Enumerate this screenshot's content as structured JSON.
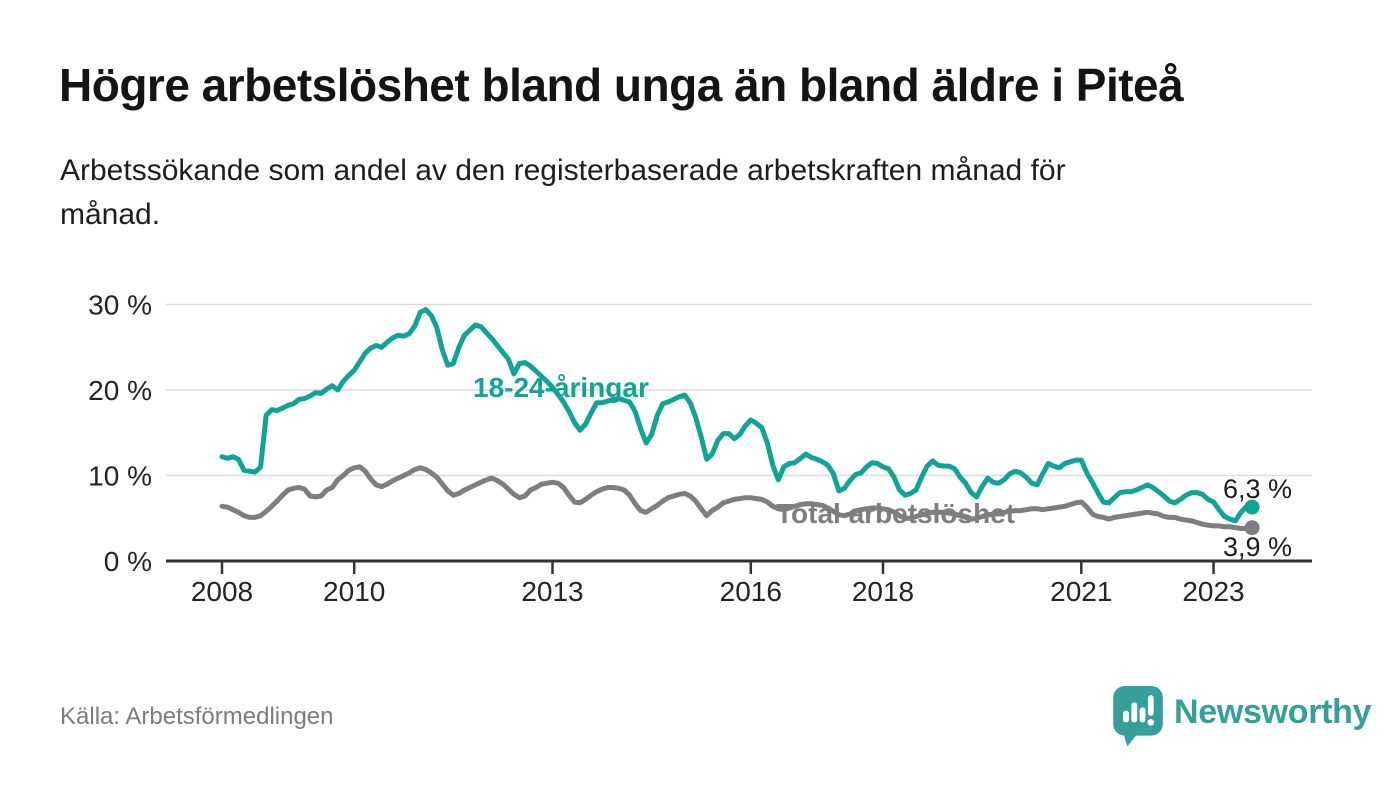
{
  "header": {
    "title": "Högre arbetslöshet bland unga än bland äldre i Piteå",
    "subtitle_line1": "Arbetssökande som andel av den registerbaserade arbetskraften månad för",
    "subtitle_line2": "månad."
  },
  "footer": {
    "source": "Källa: Arbetsförmedlingen",
    "brand": "Newsworthy"
  },
  "colors": {
    "youth_line": "#10A496",
    "total_line": "#7D7D82",
    "axis": "#333333",
    "grid": "#DCDCDC",
    "text": "#1D1D1D",
    "muted_text": "#7B7B81",
    "brand_teal": "#35A099"
  },
  "chart_data": {
    "type": "line",
    "title": "Högre arbetslöshet bland unga än bland äldre i Piteå",
    "subtitle": "Arbetssökande som andel av den registerbaserade arbetskraften månad för månad.",
    "x_unit": "monthly",
    "x_start": "2008-01",
    "x_end": "2023-08",
    "ylim": [
      0,
      31.5
    ],
    "grid": "horizontal",
    "legend_position": "inline-labels",
    "y_axis_ticks": [
      {
        "value": 0,
        "label": "0 %"
      },
      {
        "value": 10,
        "label": "10 %"
      },
      {
        "value": 20,
        "label": "20 %"
      },
      {
        "value": 30,
        "label": "30 %"
      }
    ],
    "x_axis_ticks": [
      {
        "value": 2008,
        "label": "2008"
      },
      {
        "value": 2010,
        "label": "2010"
      },
      {
        "value": 2013,
        "label": "2013"
      },
      {
        "value": 2016,
        "label": "2016"
      },
      {
        "value": 2018,
        "label": "2018"
      },
      {
        "value": 2021,
        "label": "2021"
      },
      {
        "value": 2023,
        "label": "2023"
      }
    ],
    "series": [
      {
        "name": "18-24-åringar",
        "color": "#10A496",
        "end_label": "6,3 %",
        "last_value": 6.3,
        "values": [
          12.2,
          12.0,
          12.2,
          11.9,
          10.6,
          10.5,
          10.4,
          11.0,
          17.0,
          17.7,
          17.6,
          17.9,
          18.2,
          18.4,
          18.9,
          19.0,
          19.3,
          19.7,
          19.6,
          20.1,
          20.5,
          20.0,
          21.0,
          21.7,
          22.3,
          23.3,
          24.3,
          24.9,
          25.2,
          25.0,
          25.6,
          26.1,
          26.4,
          26.3,
          26.6,
          27.5,
          29.1,
          29.4,
          28.7,
          27.3,
          24.7,
          22.9,
          23.1,
          25.0,
          26.4,
          27.0,
          27.6,
          27.4,
          26.7,
          26.0,
          25.2,
          24.4,
          23.6,
          21.9,
          23.1,
          23.2,
          22.8,
          22.2,
          21.6,
          21.0,
          20.3,
          19.5,
          18.6,
          17.5,
          16.2,
          15.3,
          16.0,
          17.3,
          18.5,
          18.5,
          18.7,
          18.9,
          19.0,
          18.8,
          18.6,
          17.5,
          15.5,
          13.8,
          14.8,
          17.0,
          18.4,
          18.6,
          18.9,
          19.2,
          19.4,
          18.5,
          16.8,
          14.5,
          11.9,
          12.5,
          14.1,
          14.9,
          14.9,
          14.3,
          14.8,
          15.8,
          16.5,
          16.1,
          15.6,
          13.8,
          11.2,
          9.5,
          11.0,
          11.4,
          11.5,
          12.0,
          12.5,
          12.1,
          11.9,
          11.6,
          11.2,
          10.2,
          8.2,
          8.5,
          9.4,
          10.1,
          10.3,
          11.0,
          11.5,
          11.4,
          11.0,
          10.8,
          9.8,
          8.3,
          7.7,
          7.9,
          8.3,
          9.8,
          11.1,
          11.7,
          11.2,
          11.1,
          11.1,
          10.8,
          9.8,
          9.1,
          8.0,
          7.5,
          8.7,
          9.7,
          9.2,
          9.1,
          9.5,
          10.2,
          10.5,
          10.3,
          9.8,
          9.1,
          8.9,
          10.2,
          11.4,
          11.1,
          10.9,
          11.4,
          11.6,
          11.8,
          11.8,
          10.3,
          9.2,
          8.0,
          6.9,
          6.8,
          7.4,
          8.0,
          8.1,
          8.1,
          8.3,
          8.6,
          8.9,
          8.6,
          8.1,
          7.6,
          7.0,
          6.8,
          7.2,
          7.7,
          8.0,
          8.0,
          7.8,
          7.2,
          6.9,
          6.0,
          5.2,
          4.9,
          4.7,
          5.7,
          6.4,
          6.3
        ]
      },
      {
        "name": "Total arbetslöshet",
        "color": "#7D7D82",
        "end_label": "3,9 %",
        "last_value": 3.9,
        "values": [
          6.4,
          6.3,
          6.0,
          5.7,
          5.3,
          5.1,
          5.1,
          5.3,
          5.8,
          6.4,
          7.0,
          7.7,
          8.3,
          8.5,
          8.6,
          8.4,
          7.6,
          7.5,
          7.6,
          8.3,
          8.6,
          9.5,
          10.0,
          10.6,
          10.9,
          11.0,
          10.5,
          9.6,
          8.9,
          8.7,
          9.0,
          9.4,
          9.7,
          10.0,
          10.3,
          10.7,
          10.9,
          10.7,
          10.3,
          9.8,
          9.0,
          8.2,
          7.7,
          7.9,
          8.3,
          8.6,
          8.9,
          9.2,
          9.5,
          9.7,
          9.4,
          9.0,
          8.4,
          7.8,
          7.4,
          7.6,
          8.3,
          8.6,
          9.0,
          9.1,
          9.2,
          9.1,
          8.6,
          7.7,
          6.9,
          6.8,
          7.2,
          7.7,
          8.1,
          8.4,
          8.6,
          8.6,
          8.5,
          8.3,
          7.7,
          6.7,
          5.9,
          5.7,
          6.1,
          6.5,
          7.0,
          7.4,
          7.6,
          7.8,
          7.9,
          7.6,
          7.0,
          6.1,
          5.3,
          5.9,
          6.3,
          6.8,
          7.0,
          7.2,
          7.3,
          7.4,
          7.4,
          7.3,
          7.2,
          6.9,
          6.4,
          6.1,
          6.0,
          6.2,
          6.4,
          6.6,
          6.7,
          6.7,
          6.6,
          6.5,
          6.2,
          5.8,
          5.4,
          5.3,
          5.5,
          5.8,
          6.0,
          6.1,
          6.2,
          6.2,
          6.1,
          6.0,
          5.7,
          5.3,
          5.0,
          5.0,
          5.2,
          5.4,
          5.6,
          5.7,
          5.7,
          5.7,
          5.6,
          5.5,
          5.3,
          5.1,
          4.9,
          5.0,
          5.2,
          5.4,
          5.5,
          5.6,
          5.7,
          5.8,
          5.9,
          5.9,
          6.0,
          6.1,
          6.1,
          6.0,
          6.1,
          6.2,
          6.3,
          6.4,
          6.6,
          6.8,
          6.9,
          6.3,
          5.5,
          5.2,
          5.1,
          4.9,
          5.1,
          5.2,
          5.3,
          5.4,
          5.5,
          5.6,
          5.7,
          5.6,
          5.5,
          5.2,
          5.1,
          5.1,
          4.9,
          4.8,
          4.7,
          4.5,
          4.3,
          4.2,
          4.1,
          4.1,
          4.0,
          4.0,
          3.9,
          3.8,
          3.8,
          3.9
        ]
      }
    ]
  }
}
